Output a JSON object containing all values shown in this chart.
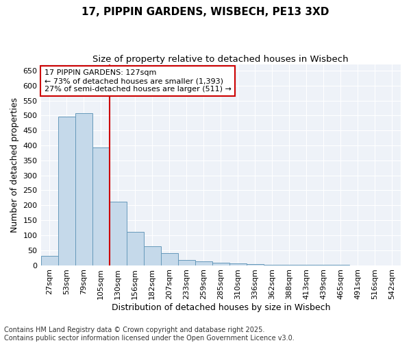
{
  "title1": "17, PIPPIN GARDENS, WISBECH, PE13 3XD",
  "title2": "Size of property relative to detached houses in Wisbech",
  "xlabel": "Distribution of detached houses by size in Wisbech",
  "ylabel": "Number of detached properties",
  "categories": [
    "27sqm",
    "53sqm",
    "79sqm",
    "105sqm",
    "130sqm",
    "156sqm",
    "182sqm",
    "207sqm",
    "233sqm",
    "259sqm",
    "285sqm",
    "310sqm",
    "336sqm",
    "362sqm",
    "388sqm",
    "413sqm",
    "439sqm",
    "465sqm",
    "491sqm",
    "516sqm",
    "542sqm"
  ],
  "values": [
    32,
    497,
    507,
    392,
    213,
    112,
    63,
    40,
    17,
    12,
    8,
    5,
    4,
    2,
    2,
    1,
    1,
    1,
    0,
    0,
    0
  ],
  "bar_color": "#c5d9ea",
  "bar_edge_color": "#6699bb",
  "vline_color": "#cc0000",
  "annotation_text": "17 PIPPIN GARDENS: 127sqm\n← 73% of detached houses are smaller (1,393)\n27% of semi-detached houses are larger (511) →",
  "annotation_box_color": "#ffffff",
  "annotation_box_edge": "#cc0000",
  "ylim": [
    0,
    670
  ],
  "yticks": [
    0,
    50,
    100,
    150,
    200,
    250,
    300,
    350,
    400,
    450,
    500,
    550,
    600,
    650
  ],
  "footer": "Contains HM Land Registry data © Crown copyright and database right 2025.\nContains public sector information licensed under the Open Government Licence v3.0.",
  "bg_color": "#ffffff",
  "plot_bg_color": "#eef2f8",
  "grid_color": "#ffffff",
  "title1_fontsize": 11,
  "title2_fontsize": 9.5,
  "axis_label_fontsize": 9,
  "tick_fontsize": 8,
  "footer_fontsize": 7,
  "vline_index": 4
}
